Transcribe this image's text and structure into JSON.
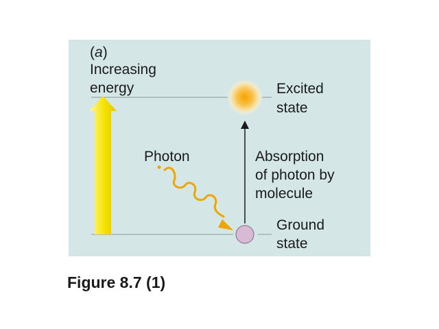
{
  "panel": {
    "part_letter": "a",
    "axis_label_line1": "Increasing",
    "axis_label_line2": "energy",
    "excited_line1": "Excited",
    "excited_line2": "state",
    "ground_line1": "Ground",
    "ground_line2": "state",
    "photon_label": "Photon",
    "absorption_line1": "Absorption",
    "absorption_line2": "of photon by",
    "absorption_line3": "molecule"
  },
  "caption": "Figure 8.7 (1)",
  "colors": {
    "panel_bg": "#d4e6e6",
    "energy_arrow": "#f5e300",
    "photon": "#f0a400",
    "ground_molecule": "#d8b9d6",
    "excited_molecule": "#f7b733"
  }
}
